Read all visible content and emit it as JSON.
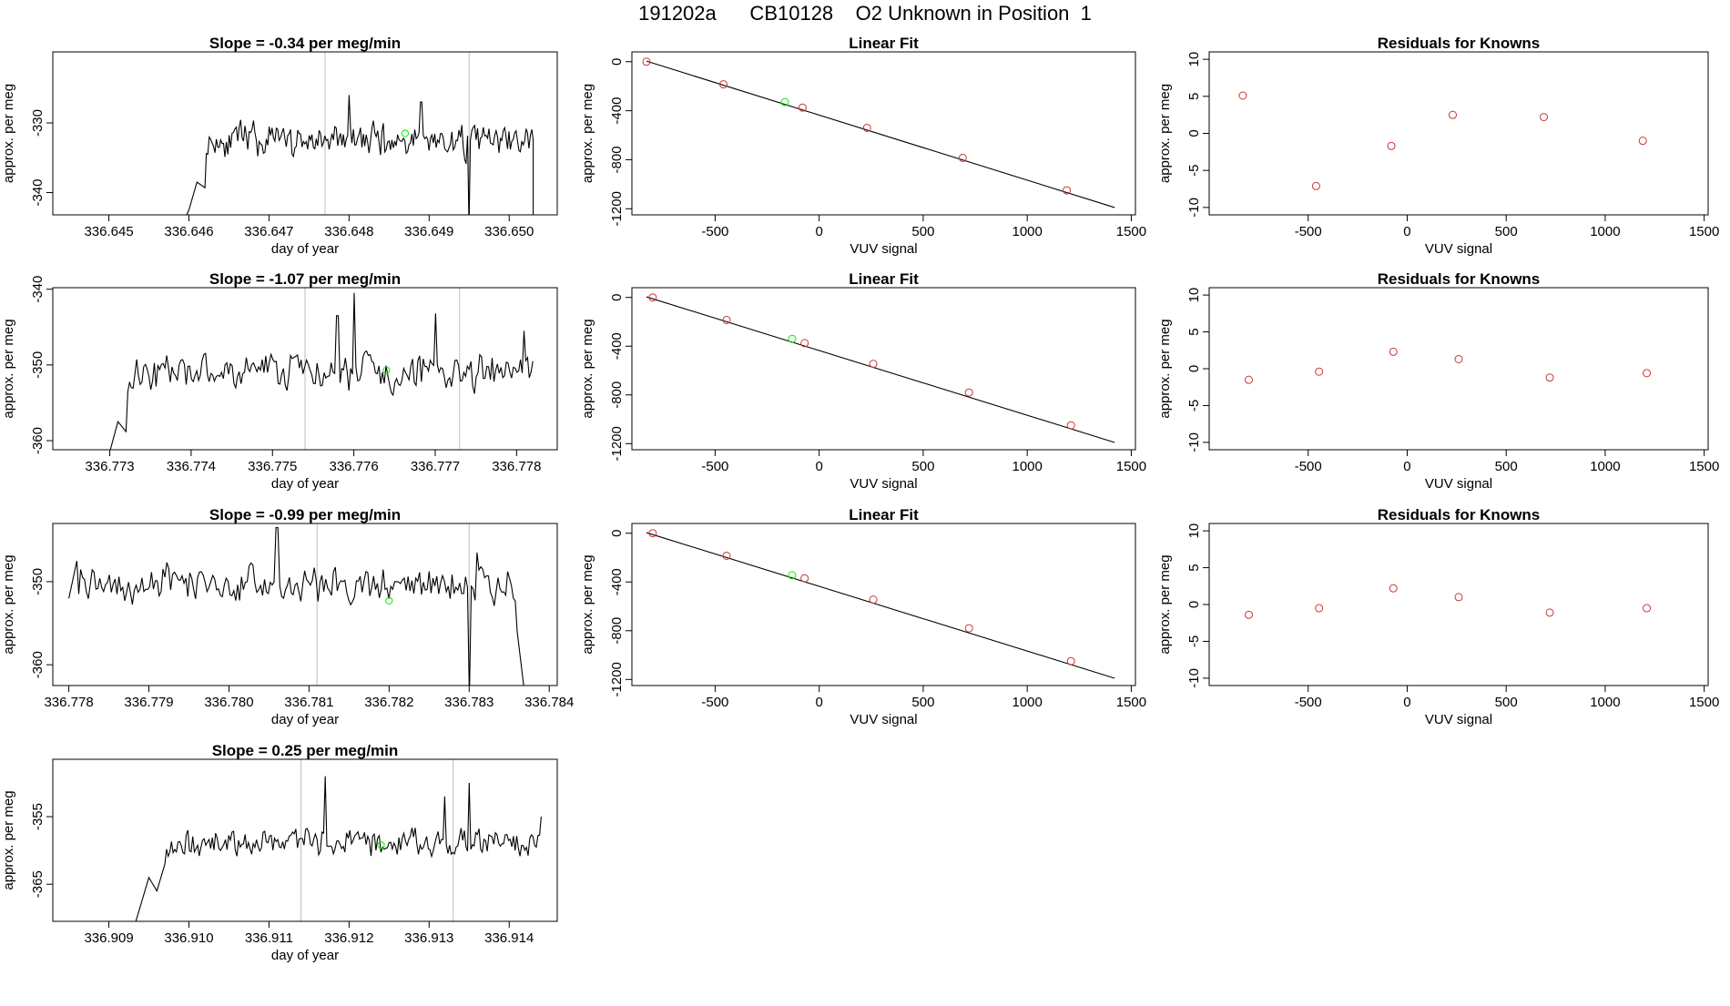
{
  "page": {
    "title": "191202a      CB10128    O2 Unknown in Position  1"
  },
  "colors": {
    "trace": "#000000",
    "frame": "#000000",
    "vline": "#bebebe",
    "green": "#00ee00",
    "red": "#cd3333"
  },
  "chart_data": [
    {
      "id": "ts-1",
      "type": "line",
      "title": "Slope =  -0.34  per meg/min",
      "xlabel": "day of year",
      "ylabel": "approx. per meg",
      "xlim": [
        336.6443,
        336.6506
      ],
      "ylim": [
        -343.2,
        -319.8
      ],
      "xticks": [
        336.645,
        336.646,
        336.647,
        336.648,
        336.649,
        336.65
      ],
      "xtick_labels": [
        "336.645",
        "336.646",
        "336.647",
        "336.648",
        "336.649",
        "336.650"
      ],
      "yticks": [
        -330,
        -340
      ],
      "ytick_labels": [
        "-330",
        "-340"
      ],
      "vlines": [
        336.6477,
        336.6495
      ],
      "green_point": {
        "x": 336.6487,
        "y": -331.5
      },
      "series": {
        "x_start": 336.6459,
        "x_end": 336.6503,
        "seed": 11,
        "base": -332.5,
        "amp": 2.8,
        "lead": [
          [
            336.6459,
            -345
          ],
          [
            336.646,
            -342.5
          ],
          [
            336.6461,
            -338.5
          ],
          [
            336.6462,
            -339.3
          ]
        ],
        "dips": [
          [
            336.6495,
            -345
          ]
        ],
        "spikes": [
          [
            336.648,
            -326
          ],
          [
            336.6489,
            -327
          ]
        ],
        "tail": [
          [
            336.6503,
            -332.5
          ],
          [
            336.6503,
            -345
          ]
        ]
      }
    },
    {
      "id": "lf-1",
      "type": "scatter",
      "title": "Linear Fit",
      "xlabel": "VUV signal",
      "ylabel": "approx. per meg",
      "xlim": [
        -900,
        1520
      ],
      "ylim": [
        -1250,
        80
      ],
      "xticks": [
        -500,
        0,
        500,
        1000,
        1500
      ],
      "xtick_labels": [
        "-500",
        "0",
        "500",
        "1000",
        "1500"
      ],
      "yticks": [
        0,
        -400,
        -800,
        -1200
      ],
      "ytick_labels": [
        "0",
        "-400",
        "-800",
        "-1200"
      ],
      "line": [
        [
          -830,
          5
        ],
        [
          1420,
          -1190
        ]
      ],
      "points": [
        [
          -830,
          0
        ],
        [
          -460,
          -185
        ],
        [
          -80,
          -375
        ],
        [
          230,
          -540
        ],
        [
          690,
          -785
        ],
        [
          1190,
          -1050
        ]
      ],
      "green_points": [
        [
          -165,
          -330
        ]
      ]
    },
    {
      "id": "res-1",
      "type": "scatter",
      "title": "Residuals for Knowns",
      "xlabel": "VUV signal",
      "ylabel": "approx. per meg",
      "xlim": [
        -1000,
        1520
      ],
      "ylim": [
        -11,
        11
      ],
      "xticks": [
        -500,
        0,
        500,
        1000,
        1500
      ],
      "xtick_labels": [
        "-500",
        "0",
        "500",
        "1000",
        "1500"
      ],
      "yticks": [
        10,
        5,
        0,
        -5,
        -10
      ],
      "ytick_labels": [
        "10",
        "5",
        "0",
        "-5",
        "-10"
      ],
      "points": [
        [
          -830,
          5.1
        ],
        [
          -460,
          -7.1
        ],
        [
          -80,
          -1.7
        ],
        [
          230,
          2.5
        ],
        [
          690,
          2.2
        ],
        [
          1190,
          -1.0
        ]
      ]
    },
    {
      "id": "ts-2",
      "type": "line",
      "title": "Slope =  -1.07  per meg/min",
      "xlabel": "day of year",
      "ylabel": "approx. per meg",
      "xlim": [
        336.7723,
        336.7785
      ],
      "ylim": [
        -361.2,
        -339.8
      ],
      "xticks": [
        336.773,
        336.774,
        336.775,
        336.776,
        336.777,
        336.778
      ],
      "xtick_labels": [
        "336.773",
        "336.774",
        "336.775",
        "336.776",
        "336.777",
        "336.778"
      ],
      "yticks": [
        -340,
        -350,
        -360
      ],
      "ytick_labels": [
        "-340",
        "-350",
        "-360"
      ],
      "vlines": [
        336.7754,
        336.7773
      ],
      "green_point": {
        "x": 336.7764,
        "y": -350.7
      },
      "series": {
        "x_start": 336.7727,
        "x_end": 336.7782,
        "seed": 23,
        "base": -351,
        "amp": 2.8,
        "lead": [
          [
            336.7727,
            -363
          ],
          [
            336.773,
            -361.5
          ],
          [
            336.7731,
            -357.5
          ],
          [
            336.7732,
            -358.8
          ]
        ],
        "dips": [],
        "spikes": [
          [
            336.776,
            -340.5
          ],
          [
            336.7758,
            -343.5
          ],
          [
            336.777,
            -343.2
          ],
          [
            336.7781,
            -345.5
          ]
        ],
        "tail": [
          [
            336.7782,
            -349.5
          ]
        ]
      }
    },
    {
      "id": "lf-2",
      "type": "scatter",
      "title": "Linear Fit",
      "xlabel": "VUV signal",
      "ylabel": "approx. per meg",
      "xlim": [
        -900,
        1520
      ],
      "ylim": [
        -1250,
        80
      ],
      "xticks": [
        -500,
        0,
        500,
        1000,
        1500
      ],
      "xtick_labels": [
        "-500",
        "0",
        "500",
        "1000",
        "1500"
      ],
      "yticks": [
        0,
        -400,
        -800,
        -1200
      ],
      "ytick_labels": [
        "0",
        "-400",
        "-800",
        "-1200"
      ],
      "line": [
        [
          -830,
          5
        ],
        [
          1420,
          -1190
        ]
      ],
      "points": [
        [
          -800,
          0
        ],
        [
          -445,
          -185
        ],
        [
          -70,
          -375
        ],
        [
          260,
          -545
        ],
        [
          720,
          -780
        ],
        [
          1210,
          -1050
        ]
      ],
      "green_points": [
        [
          -130,
          -340
        ]
      ]
    },
    {
      "id": "res-2",
      "type": "scatter",
      "title": "Residuals for Knowns",
      "xlabel": "VUV signal",
      "ylabel": "approx. per meg",
      "xlim": [
        -1000,
        1520
      ],
      "ylim": [
        -11,
        11
      ],
      "xticks": [
        -500,
        0,
        500,
        1000,
        1500
      ],
      "xtick_labels": [
        "-500",
        "0",
        "500",
        "1000",
        "1500"
      ],
      "yticks": [
        10,
        5,
        0,
        -5,
        -10
      ],
      "ytick_labels": [
        "10",
        "5",
        "0",
        "-5",
        "-10"
      ],
      "points": [
        [
          -800,
          -1.5
        ],
        [
          -445,
          -0.4
        ],
        [
          -70,
          2.3
        ],
        [
          260,
          1.3
        ],
        [
          720,
          -1.2
        ],
        [
          1210,
          -0.6
        ]
      ]
    },
    {
      "id": "ts-3",
      "type": "line",
      "title": "Slope =  -0.99  per meg/min",
      "xlabel": "day of year",
      "ylabel": "approx. per meg",
      "xlim": [
        336.7778,
        336.7841
      ],
      "ylim": [
        -362.5,
        -343.0
      ],
      "xticks": [
        336.778,
        336.779,
        336.78,
        336.781,
        336.782,
        336.783,
        336.784
      ],
      "xtick_labels": [
        "336.778",
        "336.779",
        "336.780",
        "336.781",
        "336.782",
        "336.783",
        "336.784"
      ],
      "yticks": [
        -350,
        -360
      ],
      "ytick_labels": [
        "-350",
        "-360"
      ],
      "vlines": [
        336.7811,
        336.783
      ],
      "green_point": {
        "x": 336.782,
        "y": -352.3
      },
      "series": {
        "x_start": 336.778,
        "x_end": 336.7837,
        "seed": 37,
        "base": -350.3,
        "amp": 2.6,
        "lead": [
          [
            336.778,
            -352
          ],
          [
            336.7781,
            -347.5
          ]
        ],
        "dips": [
          [
            336.783,
            -364
          ]
        ],
        "spikes": [
          [
            336.7806,
            -343.5
          ],
          [
            336.7831,
            -346.5
          ]
        ],
        "tail": [
          [
            336.7836,
            -356
          ],
          [
            336.7837,
            -364
          ]
        ]
      }
    },
    {
      "id": "lf-3",
      "type": "scatter",
      "title": "Linear Fit",
      "xlabel": "VUV signal",
      "ylabel": "approx. per meg",
      "xlim": [
        -900,
        1520
      ],
      "ylim": [
        -1250,
        80
      ],
      "xticks": [
        -500,
        0,
        500,
        1000,
        1500
      ],
      "xtick_labels": [
        "-500",
        "0",
        "500",
        "1000",
        "1500"
      ],
      "yticks": [
        0,
        -400,
        -800,
        -1200
      ],
      "ytick_labels": [
        "0",
        "-400",
        "-800",
        "-1200"
      ],
      "line": [
        [
          -830,
          5
        ],
        [
          1420,
          -1190
        ]
      ],
      "points": [
        [
          -800,
          0
        ],
        [
          -445,
          -185
        ],
        [
          -70,
          -370
        ],
        [
          260,
          -545
        ],
        [
          720,
          -780
        ],
        [
          1210,
          -1050
        ]
      ],
      "green_points": [
        [
          -130,
          -345
        ]
      ]
    },
    {
      "id": "res-3",
      "type": "scatter",
      "title": "Residuals for Knowns",
      "xlabel": "VUV signal",
      "ylabel": "approx. per meg",
      "xlim": [
        -1000,
        1520
      ],
      "ylim": [
        -11,
        11
      ],
      "xticks": [
        -500,
        0,
        500,
        1000,
        1500
      ],
      "xtick_labels": [
        "-500",
        "0",
        "500",
        "1000",
        "1500"
      ],
      "yticks": [
        10,
        5,
        0,
        -5,
        -10
      ],
      "ytick_labels": [
        "10",
        "5",
        "0",
        "-5",
        "-10"
      ],
      "points": [
        [
          -800,
          -1.4
        ],
        [
          -445,
          -0.5
        ],
        [
          -70,
          2.2
        ],
        [
          260,
          1.0
        ],
        [
          720,
          -1.1
        ],
        [
          1210,
          -0.5
        ]
      ]
    },
    {
      "id": "ts-4",
      "type": "line",
      "title": "Slope =  0.25  per meg/min",
      "xlabel": "day of year",
      "ylabel": "approx. per meg",
      "xlim": [
        336.9083,
        336.9146
      ],
      "ylim": [
        -370.5,
        -346.5
      ],
      "xticks": [
        336.909,
        336.91,
        336.911,
        336.912,
        336.913,
        336.914
      ],
      "xtick_labels": [
        "336.909",
        "336.910",
        "336.911",
        "336.912",
        "336.913",
        "336.914"
      ],
      "yticks": [
        -355,
        -365
      ],
      "ytick_labels": [
        "-355",
        "-365"
      ],
      "vlines": [
        336.9114,
        336.9133
      ],
      "green_point": {
        "x": 336.9124,
        "y": -359.2
      },
      "series": {
        "x_start": 336.9093,
        "x_end": 336.9144,
        "seed": 53,
        "base": -358.8,
        "amp": 2.5,
        "lead": [
          [
            336.9093,
            -372
          ],
          [
            336.9094,
            -368
          ],
          [
            336.9095,
            -364
          ],
          [
            336.9096,
            -366
          ],
          [
            336.9097,
            -362
          ]
        ],
        "dips": [],
        "spikes": [
          [
            336.9117,
            -349
          ],
          [
            336.9132,
            -352
          ],
          [
            336.9135,
            -350
          ]
        ],
        "tail": [
          [
            336.9144,
            -355
          ]
        ]
      }
    }
  ]
}
